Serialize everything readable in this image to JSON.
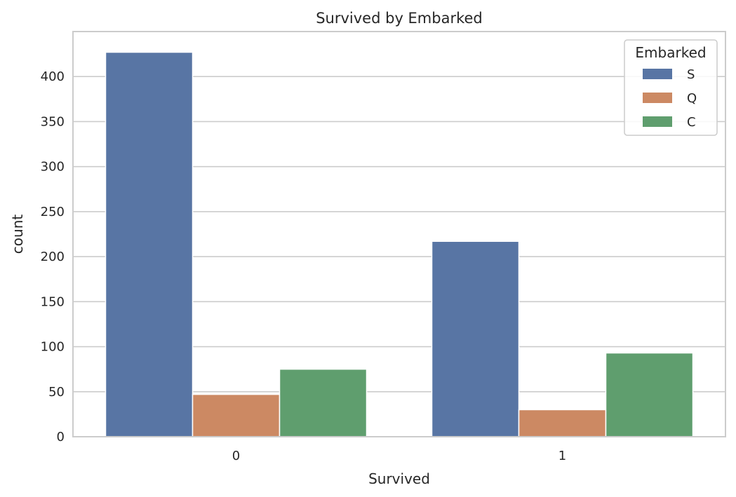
{
  "chart_data": {
    "type": "bar",
    "title": "Survived by Embarked",
    "xlabel": "Survived",
    "ylabel": "count",
    "categories": [
      "0",
      "1"
    ],
    "series": [
      {
        "name": "S",
        "values": [
          427,
          217
        ],
        "color": "#5875a4"
      },
      {
        "name": "Q",
        "values": [
          47,
          30
        ],
        "color": "#cc8963"
      },
      {
        "name": "C",
        "values": [
          75,
          93
        ],
        "color": "#5f9e6e"
      }
    ],
    "ylim": [
      0,
      450
    ],
    "yticks": [
      0,
      50,
      100,
      150,
      200,
      250,
      300,
      350,
      400
    ],
    "grid": "horizontal",
    "legend": {
      "title": "Embarked",
      "placement": "top-right"
    }
  }
}
